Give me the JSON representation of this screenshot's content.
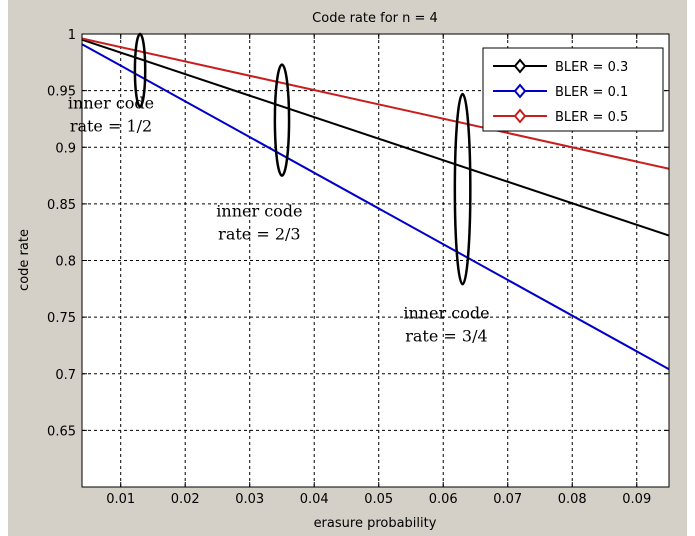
{
  "chart_data": {
    "type": "line",
    "title": "Code rate for n = 4",
    "xlabel": "erasure probability",
    "ylabel": "code rate",
    "xlim": [
      0.004,
      0.095
    ],
    "ylim": [
      0.6,
      1.0
    ],
    "xticks": [
      0.01,
      0.02,
      0.03,
      0.04,
      0.05,
      0.06,
      0.07,
      0.08,
      0.09
    ],
    "xtick_labels": [
      "0.01",
      "0.02",
      "0.03",
      "0.04",
      "0.05",
      "0.06",
      "0.07",
      "0.08",
      "0.09"
    ],
    "yticks": [
      0.65,
      0.7,
      0.75,
      0.8,
      0.85,
      0.9,
      0.95,
      1.0
    ],
    "ytick_labels": [
      "0.65",
      "0.7",
      "0.75",
      "0.8",
      "0.85",
      "0.9",
      "0.95",
      "1"
    ],
    "grid": true,
    "legend_position": "top-right",
    "series": [
      {
        "name": "BLER = 0.3",
        "color": "#000000",
        "marker": "diamond",
        "x": [
          0.004,
          0.095
        ],
        "y": [
          0.995,
          0.822
        ]
      },
      {
        "name": "BLER = 0.1",
        "color": "#0000c8",
        "marker": "diamond",
        "x": [
          0.004,
          0.095
        ],
        "y": [
          0.991,
          0.704
        ]
      },
      {
        "name": "BLER = 0.5",
        "color": "#c81e1e",
        "marker": "diamond",
        "x": [
          0.004,
          0.095
        ],
        "y": [
          0.996,
          0.881
        ]
      }
    ],
    "annotations": [
      {
        "lines": [
          "inner code",
          "rate = 1/2"
        ],
        "x": 0.0085,
        "y": 0.934,
        "ellipse": {
          "cx": 0.013,
          "cy": 0.968,
          "rx": 0.0008,
          "ry": 0.032
        }
      },
      {
        "lines": [
          "inner code",
          "rate = 2/3"
        ],
        "x": 0.0315,
        "y": 0.839,
        "ellipse": {
          "cx": 0.035,
          "cy": 0.924,
          "rx": 0.0011,
          "ry": 0.049
        }
      },
      {
        "lines": [
          "inner code",
          "rate = 3/4"
        ],
        "x": 0.0605,
        "y": 0.749,
        "ellipse": {
          "cx": 0.063,
          "cy": 0.863,
          "rx": 0.0012,
          "ry": 0.084
        }
      }
    ]
  }
}
